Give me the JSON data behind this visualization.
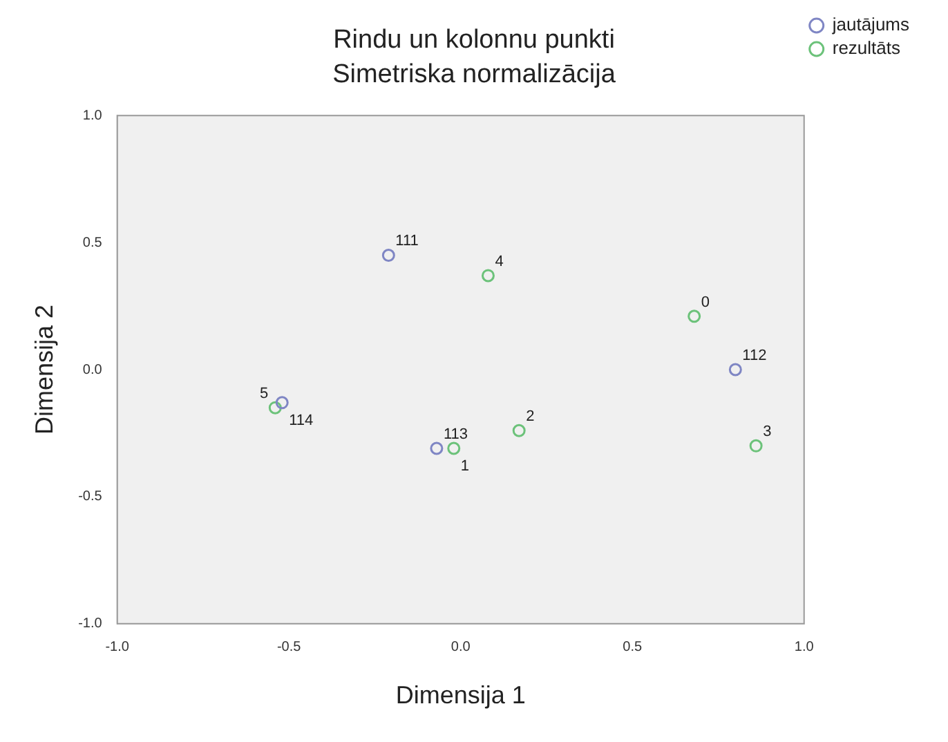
{
  "chart_data": {
    "type": "scatter",
    "title": "Rindu un kolonnu punkti",
    "subtitle": "Simetriska normalizācija",
    "xlabel": "Dimensija 1",
    "ylabel": "Dimensija 2",
    "series": [
      {
        "name": "jautājums",
        "color": "#7f86c4",
        "x": [
          -0.21,
          0.8,
          -0.52,
          -0.07
        ],
        "values": [
          0.45,
          0.0,
          -0.13,
          -0.31
        ]
      },
      {
        "name": "rezultāts",
        "color": "#6cc27a",
        "x": [
          0.08,
          0.68,
          0.86,
          0.17,
          -0.54,
          -0.02
        ],
        "values": [
          0.37,
          0.21,
          -0.3,
          -0.24,
          -0.15,
          -0.31
        ]
      }
    ],
    "annotations": [
      {
        "text": "111",
        "x": -0.21,
        "y": 0.45
      },
      {
        "text": "4",
        "x": 0.08,
        "y": 0.37
      },
      {
        "text": "0",
        "x": 0.68,
        "y": 0.21
      },
      {
        "text": "112",
        "x": 0.8,
        "y": 0.0
      },
      {
        "text": "5",
        "x": -0.54,
        "y": -0.15
      },
      {
        "text": "114",
        "x": -0.52,
        "y": -0.13
      },
      {
        "text": "113",
        "x": -0.07,
        "y": -0.31
      },
      {
        "text": "1",
        "x": -0.02,
        "y": -0.31
      },
      {
        "text": "2",
        "x": 0.17,
        "y": -0.24
      },
      {
        "text": "3",
        "x": 0.86,
        "y": -0.3
      }
    ],
    "xlim": [
      -1,
      1
    ],
    "ylim": [
      -1,
      1
    ],
    "xticks": [
      {
        "value": -1,
        "label": "-1.0"
      },
      {
        "value": -0.5,
        "label": "-0.5"
      },
      {
        "value": 0,
        "label": "0.0"
      },
      {
        "value": 0.5,
        "label": "0.5"
      },
      {
        "value": 1,
        "label": "1.0"
      }
    ],
    "yticks": [
      {
        "value": -1,
        "label": "-1.0"
      },
      {
        "value": -0.5,
        "label": "-0.5"
      },
      {
        "value": 0,
        "label": "0.0"
      },
      {
        "value": 0.5,
        "label": "0.5"
      },
      {
        "value": 1,
        "label": "1.0"
      }
    ],
    "grid": false,
    "legend": "top right",
    "marker": "circle"
  }
}
